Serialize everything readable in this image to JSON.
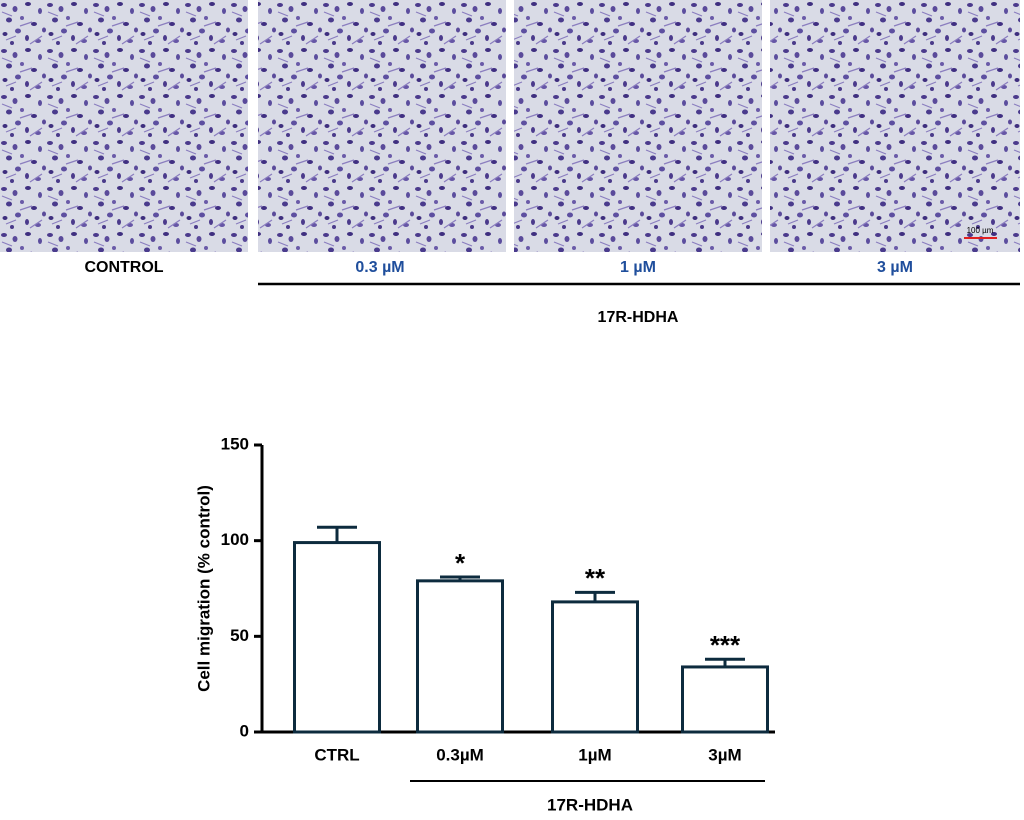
{
  "panels": {
    "labels": [
      "CONTROL",
      "0.3 µM",
      "1 µM",
      "3 µM"
    ],
    "group_label": "17R-HDHA",
    "scale_bar": "100 µm"
  },
  "chart_data": {
    "type": "bar",
    "categories": [
      "CTRL",
      "0.3µM",
      "1µM",
      "3µM"
    ],
    "values": [
      99,
      79,
      68,
      34
    ],
    "errors": [
      8,
      2,
      5,
      4
    ],
    "significance": [
      null,
      "*",
      "**",
      "***"
    ],
    "group_label": "17R-HDHA",
    "ylabel": "Cell migration (% control)",
    "ylim": [
      0,
      150
    ],
    "yticks": [
      0,
      50,
      100,
      150
    ],
    "color": "#ffffff",
    "edge_color": "#0d2b3e"
  }
}
